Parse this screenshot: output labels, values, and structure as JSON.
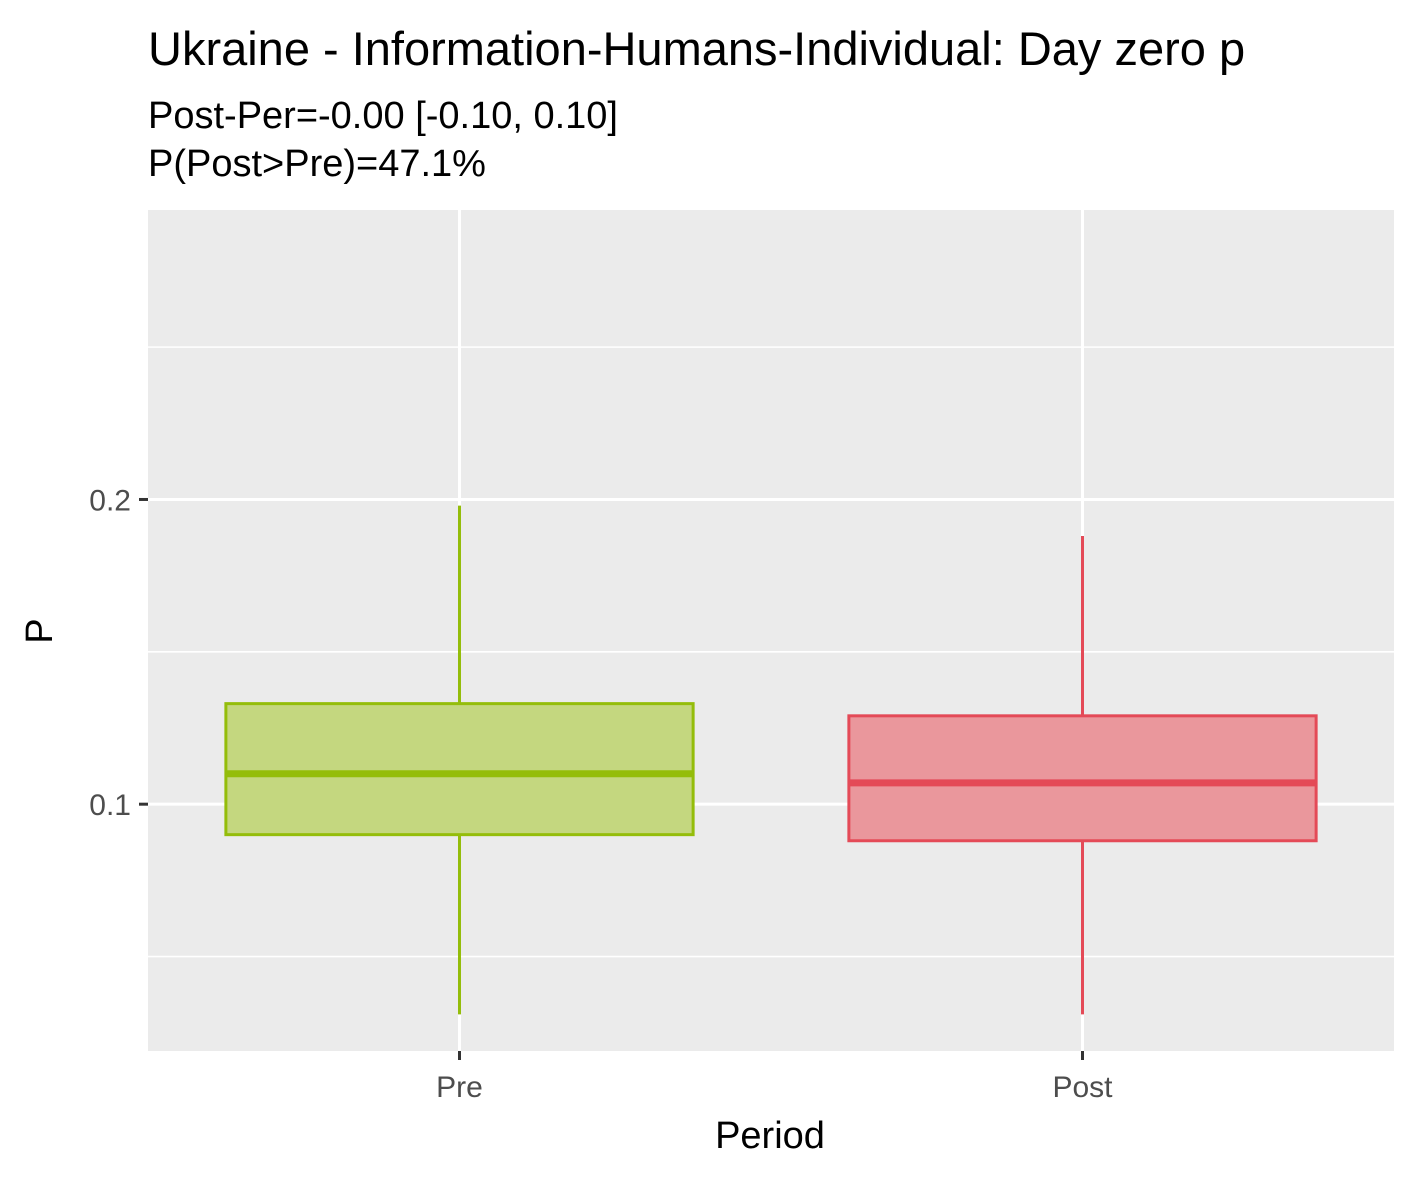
{
  "chart_data": {
    "type": "boxplot",
    "title": "Ukraine - Information-Humans-Individual: Day zero p",
    "subtitle_lines": [
      "Post-Per=-0.00 [-0.10, 0.10]",
      "P(Post>Pre)=47.1%"
    ],
    "xlabel": "Period",
    "ylabel": "P",
    "categories": [
      "Pre",
      "Post"
    ],
    "boxes": [
      {
        "category": "Pre",
        "min": 0.031,
        "q1": 0.09,
        "median": 0.11,
        "q3": 0.133,
        "max": 0.198,
        "color": "#94bd0a",
        "fill": "#c4d77f"
      },
      {
        "category": "Post",
        "min": 0.031,
        "q1": 0.088,
        "median": 0.107,
        "q3": 0.129,
        "max": 0.188,
        "color": "#e44a57",
        "fill": "#ea979c"
      }
    ],
    "ylim": [
      0.019,
      0.295
    ],
    "y_ticks": [
      0.1,
      0.2
    ],
    "y_tick_labels": [
      "0.1",
      "0.2"
    ],
    "y_minor_ticks": [
      0.05,
      0.15,
      0.25
    ],
    "grid": true,
    "panel_color": "#ebebeb",
    "grid_color": "#ffffff"
  }
}
